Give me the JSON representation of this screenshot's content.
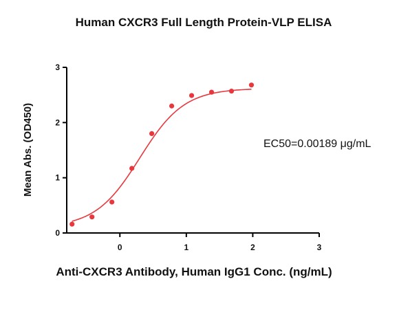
{
  "chart_data": {
    "type": "scatter",
    "title": "Human CXCR3 Full Length Protein-VLP ELISA",
    "xlabel": "Anti-CXCR3 Antibody, Human IgG1 Conc. (ng/mL)",
    "ylabel": "Mean Abs. (OD450)",
    "xlim": [
      -0.8,
      3.0
    ],
    "ylim": [
      0,
      3
    ],
    "x_ticks": [
      "0",
      "1",
      "2",
      "3"
    ],
    "y_ticks": [
      "0",
      "1",
      "2",
      "3"
    ],
    "grid": false,
    "annotation": "EC50=0.00189 μg/mL",
    "colors": {
      "series": "#e8383d",
      "axis": "#000000"
    },
    "fit": {
      "bottom": 0.1,
      "top": 2.62,
      "log_ec50": 0.3,
      "hill": 1.3
    },
    "series": [
      {
        "x": [
          -0.72,
          -0.42,
          -0.12,
          0.18,
          0.48,
          0.78,
          1.08,
          1.38,
          1.68,
          1.98
        ],
        "y": [
          0.16,
          0.29,
          0.56,
          1.17,
          1.8,
          2.3,
          2.49,
          2.55,
          2.57,
          2.68
        ]
      }
    ]
  }
}
